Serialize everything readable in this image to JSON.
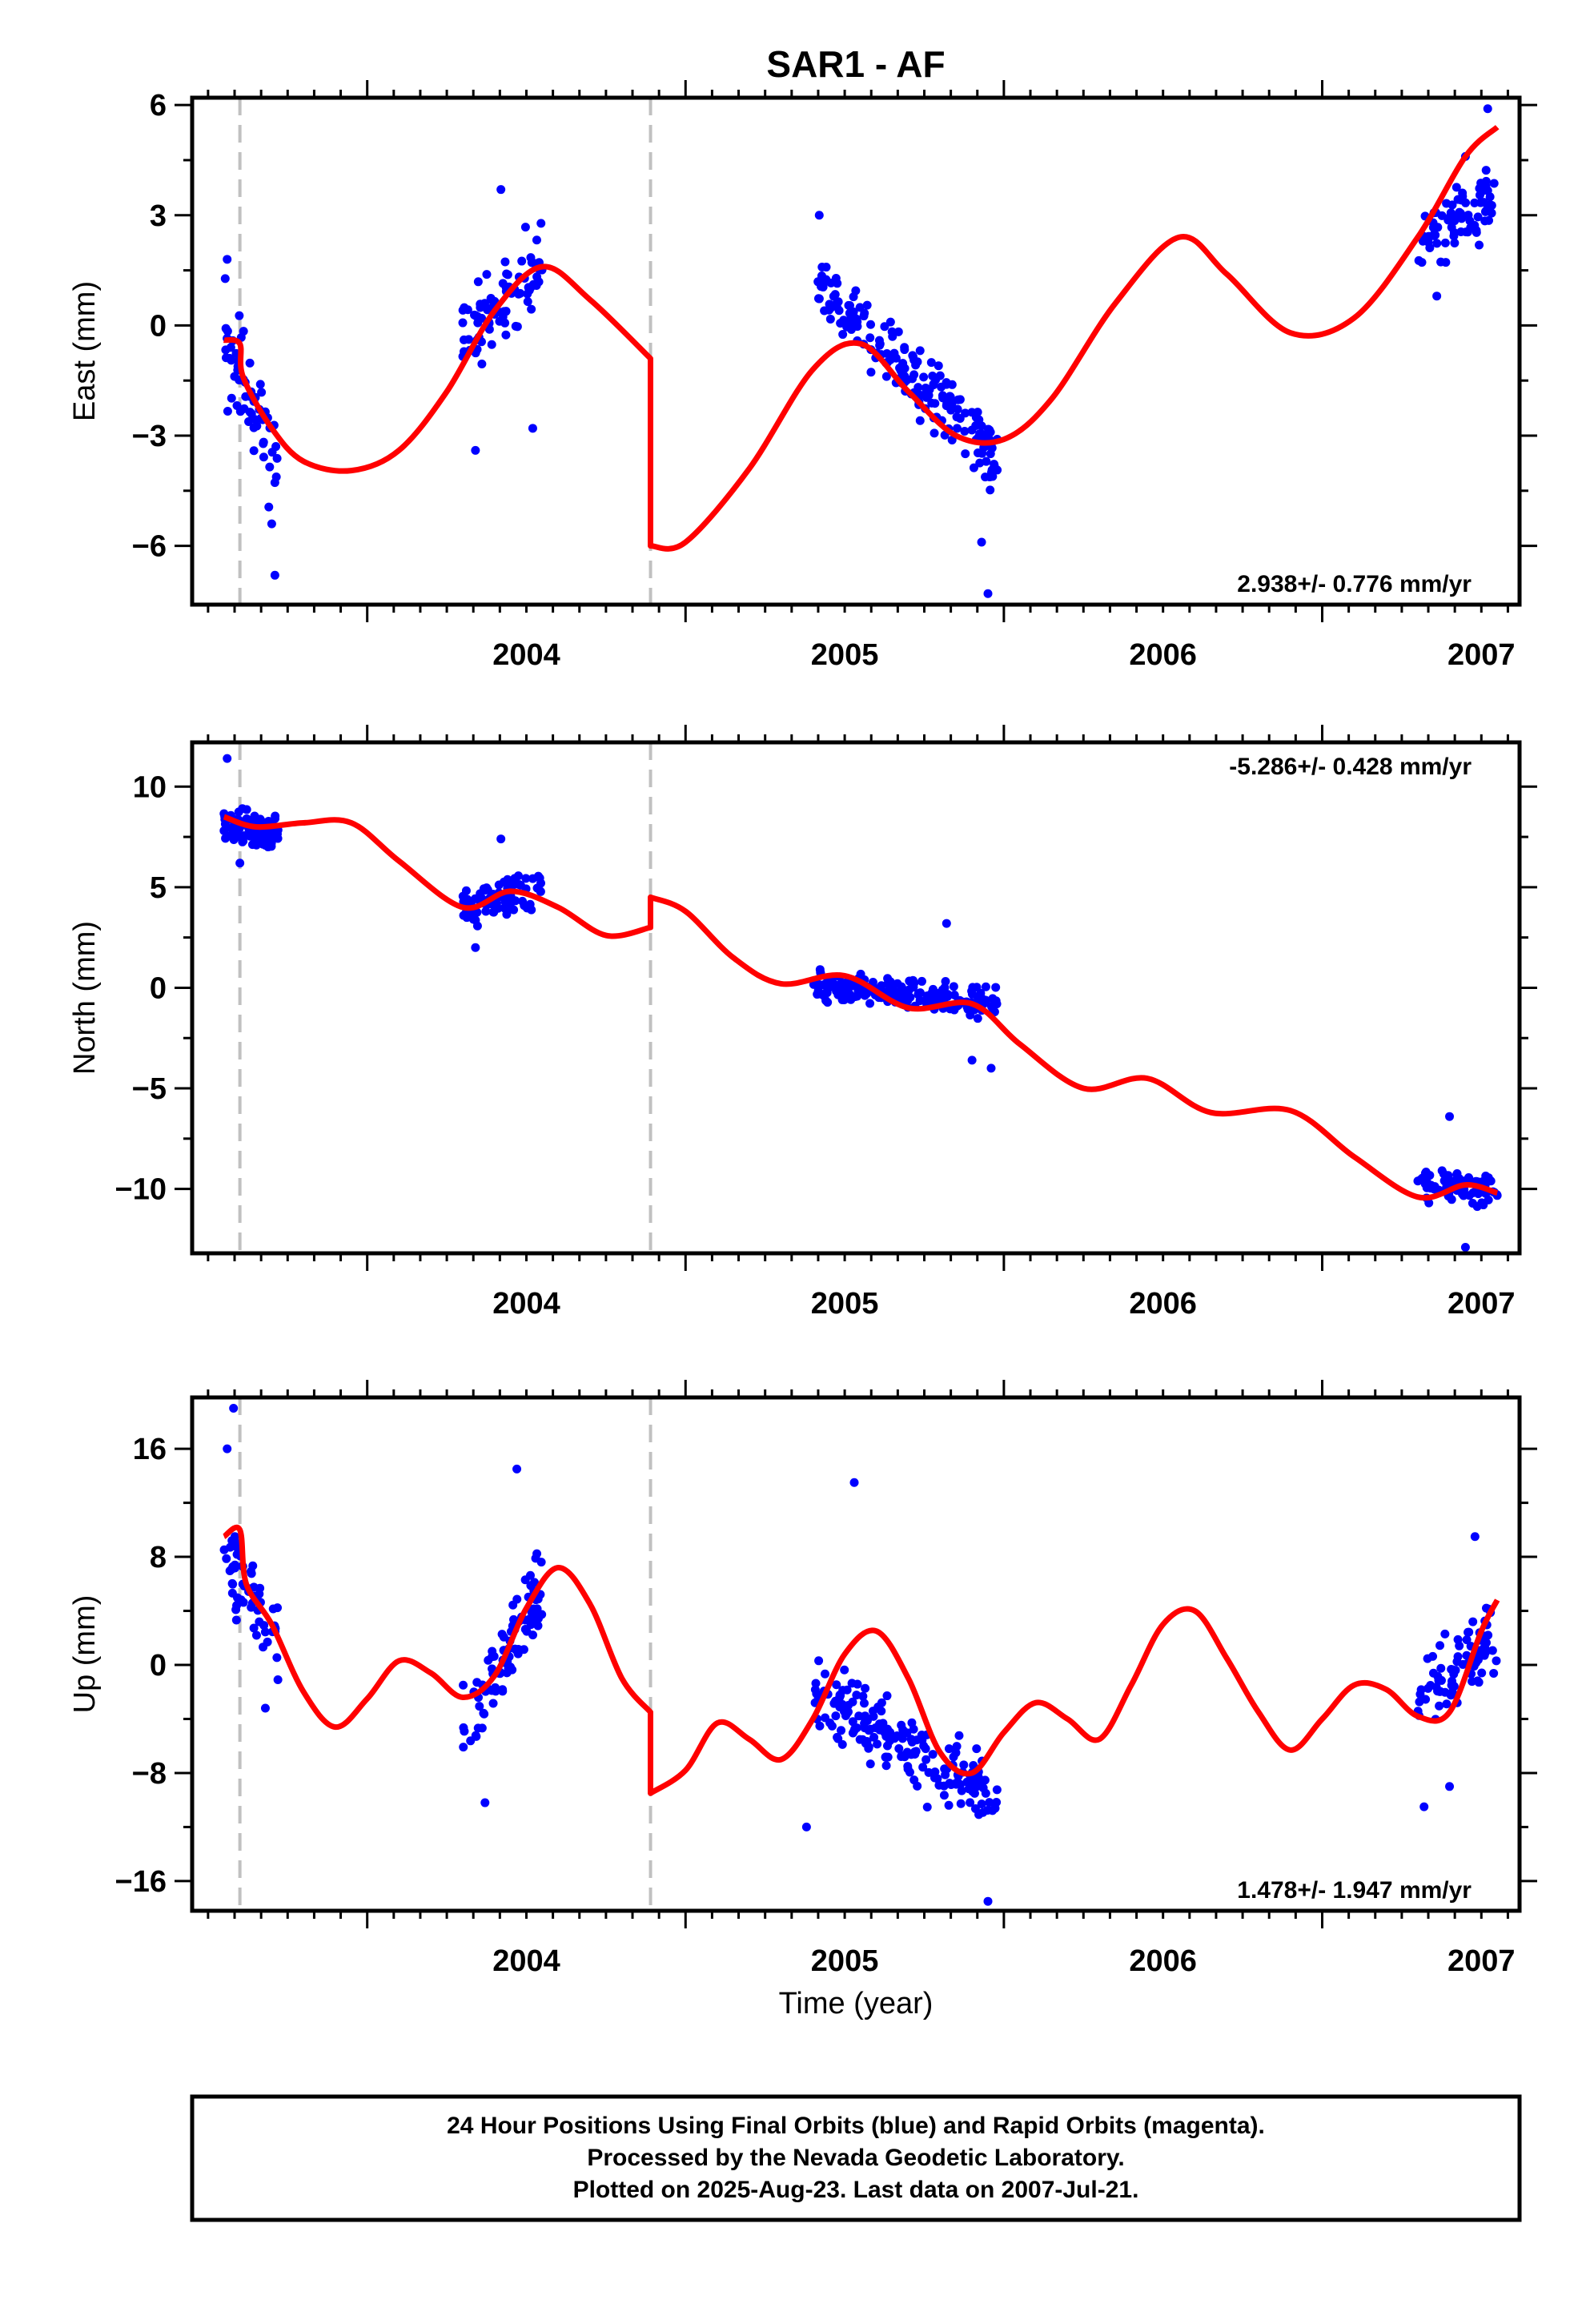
{
  "title": "SAR1 - AF",
  "xlabel": "Time (year)",
  "colors": {
    "obs": "#0000ff",
    "model": "#ff0000",
    "break": "#c0c0c0",
    "axis": "#000000"
  },
  "caption": {
    "line1": "24 Hour Positions Using Final Orbits (blue) and Rapid Orbits (magenta).",
    "line2": "Processed by the Nevada Geodetic Laboratory.",
    "line3": "Plotted on 2025-Aug-23. Last data on 2007-Jul-21."
  },
  "chart_data": [
    {
      "type": "scatter",
      "component": "east",
      "ylabel": "East (mm)",
      "rate_label": "2.938+/- 0.776 mm/yr",
      "rate_position": "bottom-right",
      "xlim": [
        2003.45,
        2007.62
      ],
      "ylim": [
        -7.6,
        6.2
      ],
      "xticks": [
        2004,
        2005,
        2006,
        2007
      ],
      "xtick_labels": [
        "2004",
        "2005",
        "2006",
        "2007"
      ],
      "yticks": [
        -6,
        -3,
        0,
        3,
        6
      ],
      "ytick_labels": [
        "−6",
        "−3",
        "0",
        "3",
        "6"
      ],
      "breaks": [
        2003.6,
        2004.89
      ],
      "model": {
        "name": "",
        "x": [
          2003.55,
          2003.6,
          2003.61,
          2003.7,
          2003.8,
          2003.95,
          2004.1,
          2004.25,
          2004.4,
          2004.55,
          2004.7,
          2004.89,
          2004.89,
          2005.0,
          2005.2,
          2005.4,
          2005.55,
          2005.7,
          2005.85,
          2006.0,
          2006.15,
          2006.35,
          2006.55,
          2006.7,
          2006.9,
          2007.1,
          2007.3,
          2007.45,
          2007.55
        ],
        "y": [
          -0.4,
          -0.5,
          -1.4,
          -2.8,
          -3.7,
          -3.95,
          -3.4,
          -1.8,
          0.4,
          1.6,
          0.7,
          -0.9,
          -6.0,
          -5.9,
          -3.9,
          -1.2,
          -0.5,
          -1.8,
          -3.0,
          -3.1,
          -2.0,
          0.6,
          2.4,
          1.4,
          -0.2,
          0.2,
          2.4,
          4.6,
          5.4
        ]
      },
      "clusters": [
        {
          "x0": 2003.55,
          "x1": 2003.72,
          "y0": -0.2,
          "y1": -3.8,
          "spread": 1.5,
          "n": 60,
          "seed": 11,
          "outliers": [
            [
              2003.71,
              -6.8
            ],
            [
              2003.7,
              -5.4
            ],
            [
              2003.56,
              1.8
            ]
          ]
        },
        {
          "x0": 2004.3,
          "x1": 2004.55,
          "y0": -0.5,
          "y1": 1.8,
          "spread": 1.2,
          "n": 80,
          "seed": 12,
          "outliers": [
            [
              2004.42,
              3.7
            ],
            [
              2004.34,
              -3.4
            ],
            [
              2004.52,
              -2.8
            ]
          ]
        },
        {
          "x0": 2005.4,
          "x1": 2005.98,
          "y0": 1.3,
          "y1": -3.6,
          "spread": 0.9,
          "n": 190,
          "seed": 13,
          "outliers": [
            [
              2005.95,
              -7.3
            ],
            [
              2005.93,
              -5.9
            ],
            [
              2005.42,
              3.0
            ]
          ]
        },
        {
          "x0": 2007.3,
          "x1": 2007.55,
          "y0": 2.2,
          "y1": 3.6,
          "spread": 0.9,
          "n": 80,
          "seed": 14,
          "outliers": [
            [
              2007.52,
              5.9
            ],
            [
              2007.36,
              0.8
            ],
            [
              2007.45,
              4.6
            ]
          ]
        }
      ]
    },
    {
      "type": "scatter",
      "component": "north",
      "ylabel": "North (mm)",
      "rate_label": "-5.286+/- 0.428 mm/yr",
      "rate_position": "top-right",
      "xlim": [
        2003.45,
        2007.62
      ],
      "ylim": [
        -13.2,
        12.2
      ],
      "xticks": [
        2004,
        2005,
        2006,
        2007
      ],
      "xtick_labels": [
        "2004",
        "2005",
        "2006",
        "2007"
      ],
      "yticks": [
        -10,
        -5,
        0,
        5,
        10
      ],
      "ytick_labels": [
        "−10",
        "−5",
        "0",
        "5",
        "10"
      ],
      "breaks": [
        2003.6,
        2004.89
      ],
      "model": {
        "name": "",
        "x": [
          2003.55,
          2003.65,
          2003.8,
          2003.95,
          2004.1,
          2004.3,
          2004.45,
          2004.6,
          2004.75,
          2004.89,
          2004.89,
          2005.0,
          2005.15,
          2005.3,
          2005.5,
          2005.7,
          2005.9,
          2006.05,
          2006.25,
          2006.45,
          2006.65,
          2006.9,
          2007.1,
          2007.3,
          2007.45,
          2007.55
        ],
        "y": [
          8.5,
          8.0,
          8.2,
          8.2,
          6.3,
          4.0,
          4.8,
          4.0,
          2.6,
          3.0,
          4.5,
          3.8,
          1.5,
          0.2,
          0.6,
          -1.0,
          -0.8,
          -2.8,
          -5.0,
          -4.5,
          -6.2,
          -6.1,
          -8.4,
          -10.4,
          -9.8,
          -10.2
        ]
      },
      "clusters": [
        {
          "x0": 2003.55,
          "x1": 2003.72,
          "y0": 8.3,
          "y1": 7.6,
          "spread": 0.8,
          "n": 110,
          "seed": 21,
          "outliers": [
            [
              2003.56,
              11.4
            ],
            [
              2003.6,
              6.2
            ]
          ]
        },
        {
          "x0": 2004.3,
          "x1": 2004.55,
          "y0": 4.0,
          "y1": 5.0,
          "spread": 1.0,
          "n": 90,
          "seed": 22,
          "outliers": [
            [
              2004.34,
              2.0
            ],
            [
              2004.42,
              7.4
            ]
          ]
        },
        {
          "x0": 2005.4,
          "x1": 2005.98,
          "y0": 0.2,
          "y1": -0.8,
          "spread": 0.8,
          "n": 190,
          "seed": 23,
          "outliers": [
            [
              2005.82,
              3.2
            ],
            [
              2005.96,
              -4.0
            ],
            [
              2005.9,
              -3.6
            ]
          ]
        },
        {
          "x0": 2007.3,
          "x1": 2007.55,
          "y0": -9.8,
          "y1": -10.0,
          "spread": 0.9,
          "n": 90,
          "seed": 24,
          "outliers": [
            [
              2007.45,
              -12.9
            ],
            [
              2007.4,
              -6.4
            ]
          ]
        }
      ]
    },
    {
      "type": "scatter",
      "component": "up",
      "ylabel": "Up (mm)",
      "rate_label": "1.478+/- 1.947 mm/yr",
      "rate_position": "bottom-right",
      "xlim": [
        2003.45,
        2007.62
      ],
      "ylim": [
        -18.2,
        19.8
      ],
      "xticks": [
        2004,
        2005,
        2006,
        2007
      ],
      "xtick_labels": [
        "2004",
        "2005",
        "2006",
        "2007"
      ],
      "yticks": [
        -16,
        -8,
        0,
        8,
        16
      ],
      "ytick_labels": [
        "−16",
        "−8",
        "0",
        "8",
        "16"
      ],
      "breaks": [
        2003.6,
        2004.89
      ],
      "model": {
        "name": "",
        "x": [
          2003.55,
          2003.6,
          2003.62,
          2003.7,
          2003.8,
          2003.9,
          2004.0,
          2004.1,
          2004.2,
          2004.3,
          2004.4,
          2004.5,
          2004.6,
          2004.7,
          2004.8,
          2004.89,
          2004.89,
          2005.0,
          2005.1,
          2005.2,
          2005.3,
          2005.4,
          2005.5,
          2005.6,
          2005.7,
          2005.8,
          2005.9,
          2006.0,
          2006.1,
          2006.2,
          2006.3,
          2006.4,
          2006.5,
          2006.6,
          2006.7,
          2006.8,
          2006.9,
          2007.0,
          2007.1,
          2007.2,
          2007.3,
          2007.4,
          2007.5,
          2007.55
        ],
        "y": [
          9.5,
          10.0,
          6.0,
          3.0,
          -2.0,
          -4.6,
          -2.5,
          0.3,
          -0.6,
          -2.4,
          -0.8,
          4.2,
          7.2,
          4.5,
          -1.0,
          -3.5,
          -9.5,
          -7.8,
          -4.3,
          -5.5,
          -7.0,
          -4.0,
          0.8,
          2.5,
          -1.0,
          -6.5,
          -8.0,
          -5.0,
          -2.8,
          -4.0,
          -5.5,
          -1.5,
          3.0,
          4.0,
          0.5,
          -3.5,
          -6.3,
          -4.0,
          -1.5,
          -1.8,
          -3.8,
          -3.5,
          2.5,
          4.8
        ]
      },
      "clusters": [
        {
          "x0": 2003.55,
          "x1": 2003.72,
          "y0": 8.0,
          "y1": 2.0,
          "spread": 3.0,
          "n": 60,
          "seed": 31,
          "outliers": [
            [
              2003.58,
              19.0
            ],
            [
              2003.56,
              16.0
            ],
            [
              2003.68,
              -3.2
            ]
          ]
        },
        {
          "x0": 2004.3,
          "x1": 2004.55,
          "y0": -5.0,
          "y1": 6.0,
          "spread": 3.2,
          "n": 90,
          "seed": 32,
          "outliers": [
            [
              2004.47,
              14.5
            ],
            [
              2004.37,
              -10.2
            ]
          ]
        },
        {
          "x0": 2005.4,
          "x1": 2005.98,
          "y0": -2.0,
          "y1": -10.0,
          "spread": 3.0,
          "n": 190,
          "seed": 33,
          "outliers": [
            [
              2005.38,
              -12.0
            ],
            [
              2005.53,
              13.5
            ],
            [
              2005.95,
              -17.5
            ]
          ]
        },
        {
          "x0": 2007.3,
          "x1": 2007.55,
          "y0": -3.0,
          "y1": 2.5,
          "spread": 3.0,
          "n": 80,
          "seed": 34,
          "outliers": [
            [
              2007.32,
              -10.5
            ],
            [
              2007.48,
              9.5
            ],
            [
              2007.4,
              -9.0
            ]
          ]
        }
      ]
    }
  ]
}
